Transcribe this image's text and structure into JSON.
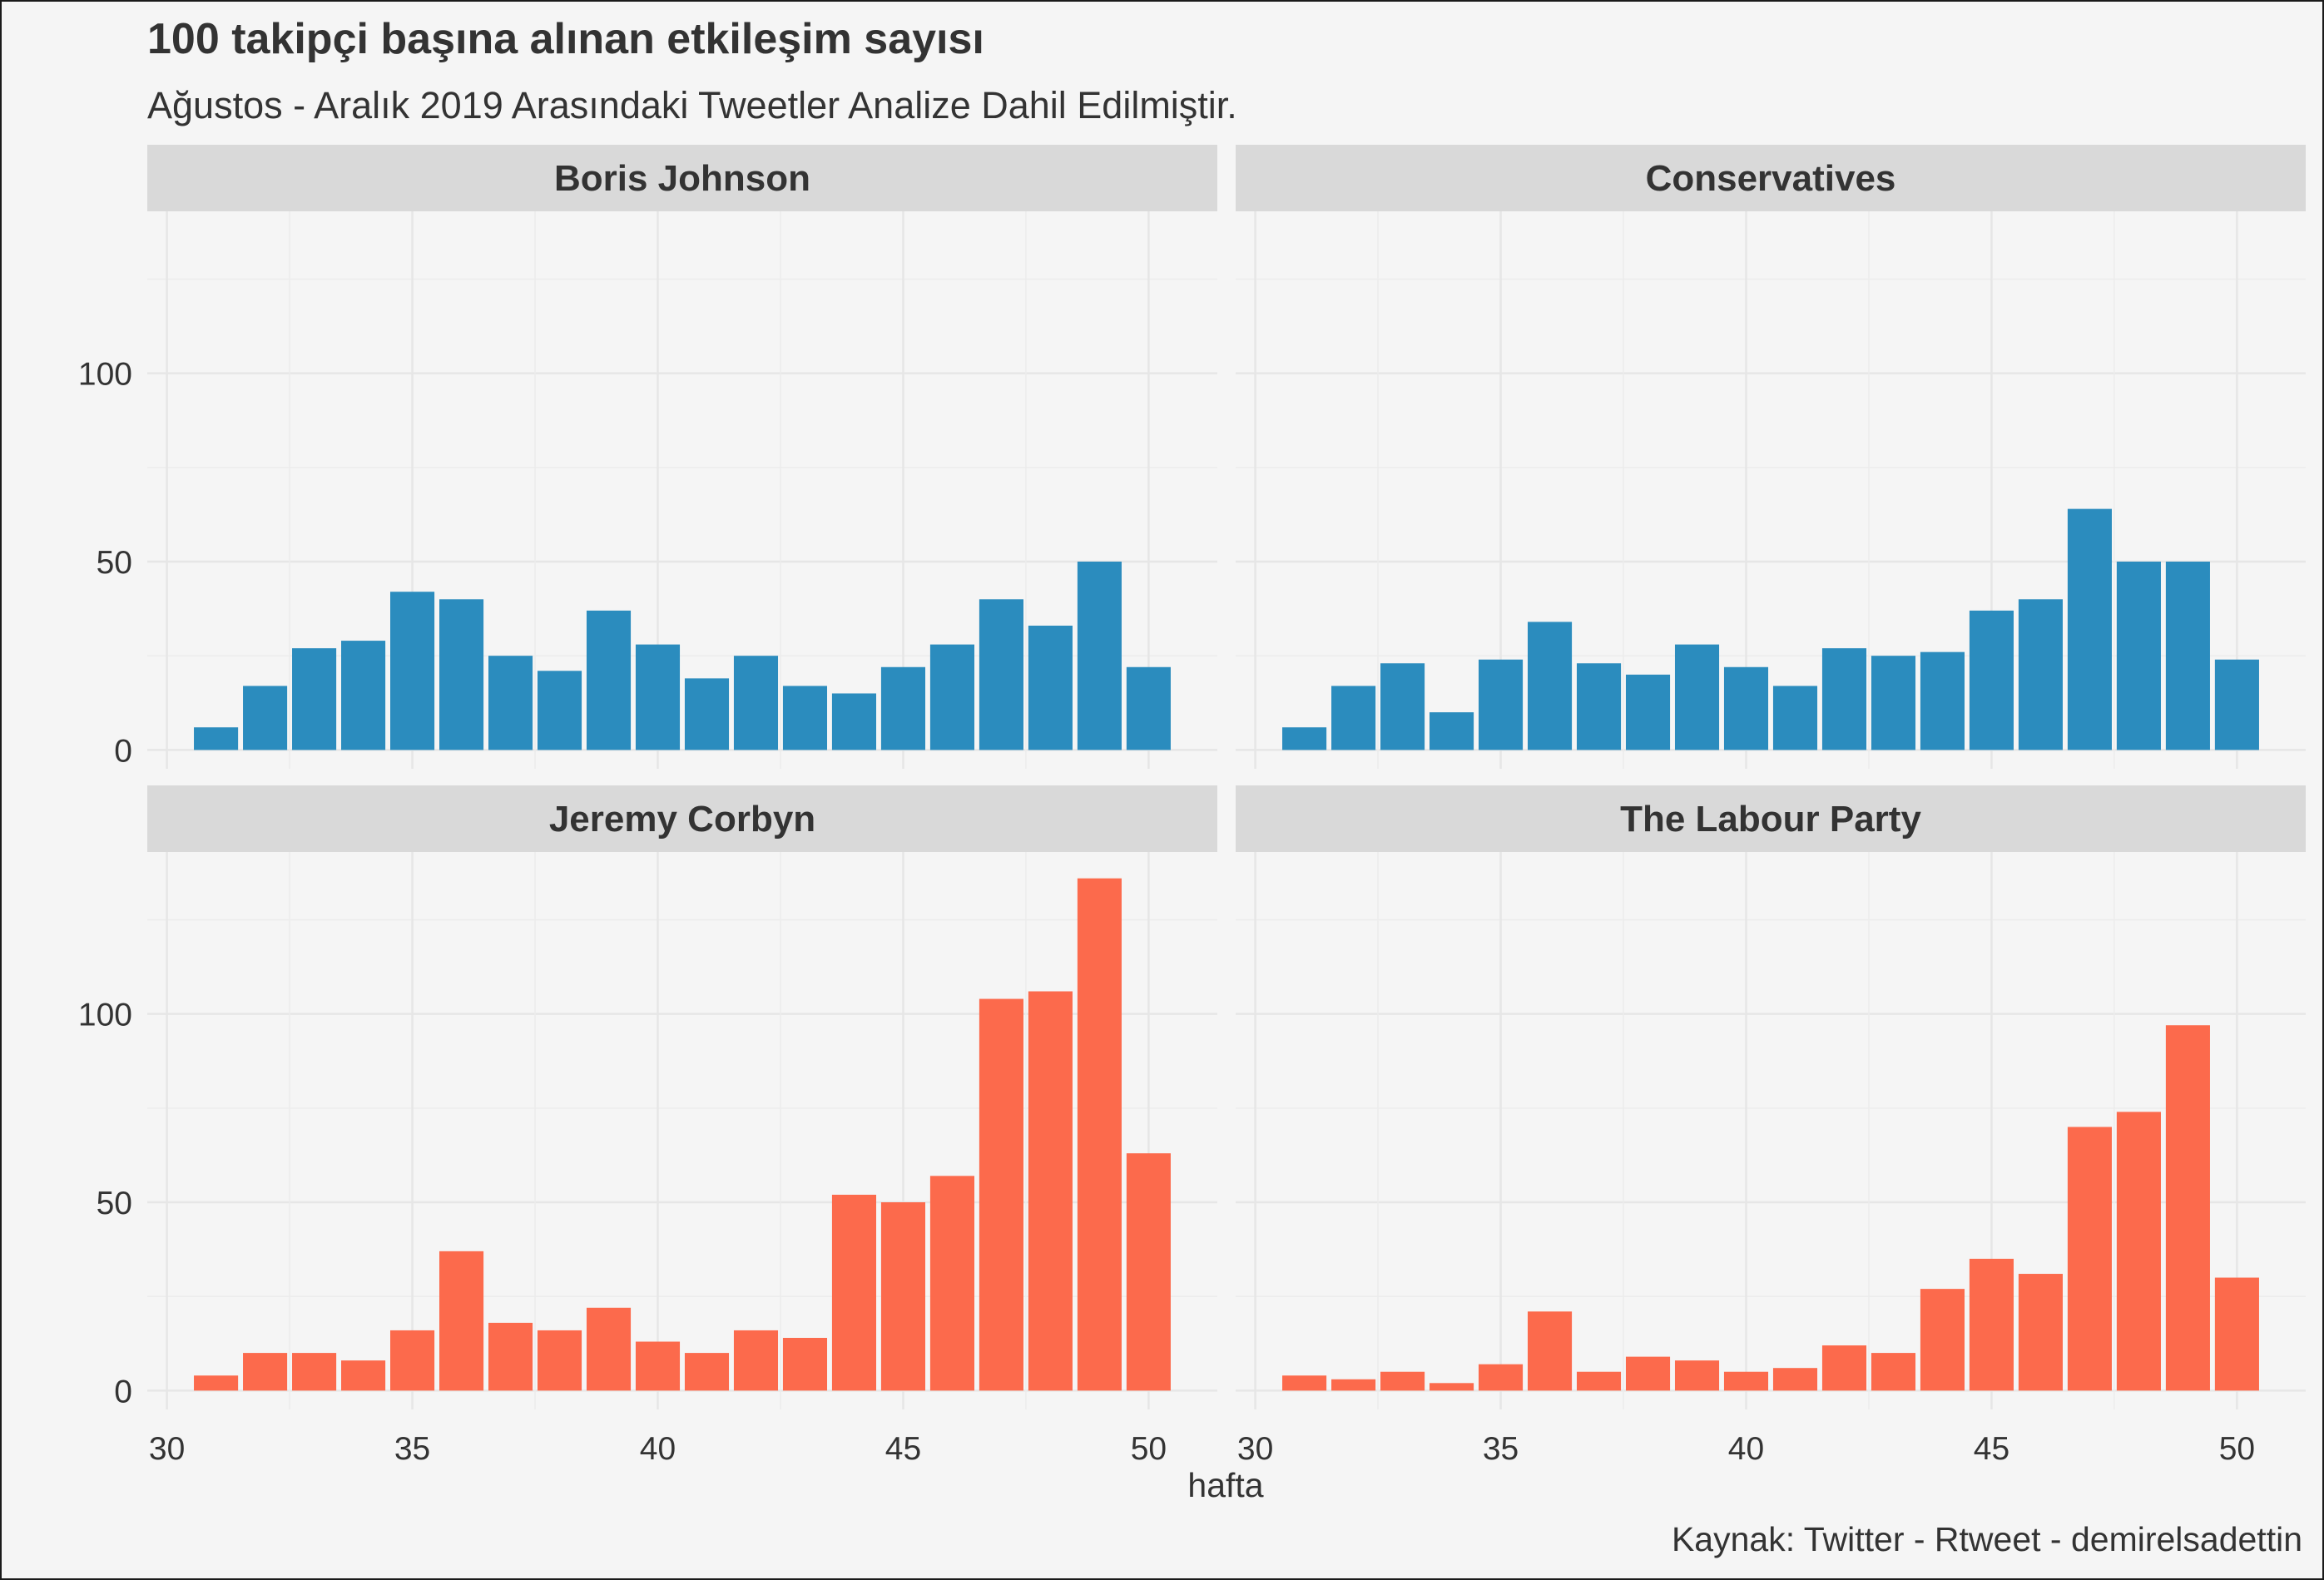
{
  "chart_data": {
    "type": "bar",
    "title": "100 takipçi başına alınan etkileşim sayısı",
    "subtitle": "Ağustos - Aralık 2019 Arasındaki Tweetler Analize Dahil Edilmiştir.",
    "caption": "Kaynak: Twitter - Rtweet - demirelsadettin",
    "xlabel": "hafta",
    "ylabel": "",
    "x_ticks": [
      30,
      35,
      40,
      45,
      50
    ],
    "y_ticks": [
      0,
      50,
      100
    ],
    "xlim": [
      29.6,
      51.4
    ],
    "ylim": [
      -5,
      143
    ],
    "grid": true,
    "layout": "facet 2x2",
    "x": [
      31,
      32,
      33,
      34,
      35,
      36,
      37,
      38,
      39,
      40,
      41,
      42,
      43,
      44,
      45,
      46,
      47,
      48,
      49,
      50
    ],
    "panels": [
      {
        "name": "Boris Johnson",
        "color": "#2b8cbe",
        "values": [
          6,
          17,
          27,
          29,
          42,
          40,
          25,
          21,
          37,
          28,
          19,
          25,
          17,
          15,
          22,
          28,
          40,
          33,
          50,
          22
        ]
      },
      {
        "name": "Conservatives",
        "color": "#2b8cbe",
        "values": [
          6,
          17,
          23,
          10,
          24,
          34,
          23,
          20,
          28,
          22,
          17,
          27,
          25,
          26,
          37,
          40,
          64,
          50,
          50,
          24
        ]
      },
      {
        "name": "Jeremy Corbyn",
        "color": "#fc6a4c",
        "values": [
          4,
          10,
          10,
          8,
          16,
          37,
          18,
          16,
          22,
          13,
          10,
          16,
          14,
          52,
          50,
          57,
          104,
          106,
          136,
          63
        ]
      },
      {
        "name": "The Labour Party",
        "color": "#fc6a4c",
        "values": [
          4,
          3,
          5,
          2,
          7,
          21,
          5,
          9,
          8,
          5,
          6,
          12,
          10,
          27,
          35,
          31,
          70,
          74,
          97,
          30
        ]
      }
    ]
  }
}
